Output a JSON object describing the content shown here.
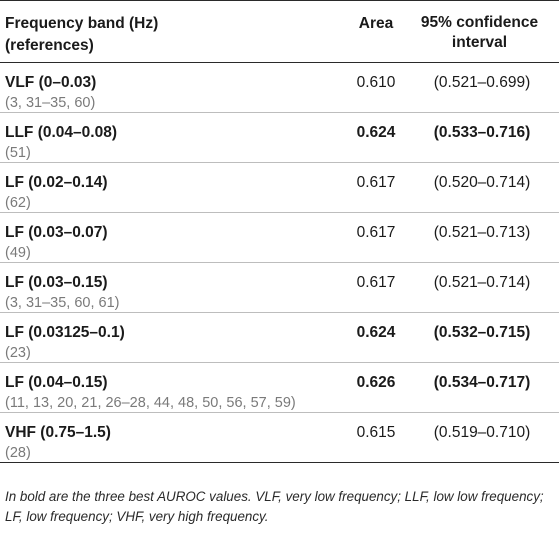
{
  "table": {
    "headers": {
      "band": "Frequency band (Hz)",
      "band_sub": "(references)",
      "area": "Area",
      "ci": "95% confidence",
      "ci_sub": "interval"
    },
    "rows": [
      {
        "band": "VLF (0–0.03)",
        "refs": "(3, 31–35, 60)",
        "area": "0.610",
        "ci": "(0.521–0.699)",
        "bold": false
      },
      {
        "band": "LLF (0.04–0.08)",
        "refs": "(51)",
        "area": "0.624",
        "ci": "(0.533–0.716)",
        "bold": true
      },
      {
        "band": "LF (0.02–0.14)",
        "refs": "(62)",
        "area": "0.617",
        "ci": "(0.520–0.714)",
        "bold": false
      },
      {
        "band": "LF (0.03–0.07)",
        "refs": "(49)",
        "area": "0.617",
        "ci": "(0.521–0.713)",
        "bold": false
      },
      {
        "band": "LF (0.03–0.15)",
        "refs": "(3, 31–35, 60, 61)",
        "area": "0.617",
        "ci": "(0.521–0.714)",
        "bold": false
      },
      {
        "band": "LF (0.03125–0.1)",
        "refs": "(23)",
        "area": "0.624",
        "ci": "(0.532–0.715)",
        "bold": true
      },
      {
        "band": "LF (0.04–0.15)",
        "refs": "(11, 13, 20, 21, 26–28, 44, 48, 50, 56, 57, 59)",
        "area": "0.626",
        "ci": "(0.534–0.717)",
        "bold": true
      },
      {
        "band": "VHF (0.75–1.5)",
        "refs": "(28)",
        "area": "0.615",
        "ci": "(0.519–0.710)",
        "bold": false
      }
    ]
  },
  "footnote": "In bold are the three best AUROC values. VLF, very low frequency; LLF, low low frequency; LF, low frequency; VHF, very high frequency."
}
